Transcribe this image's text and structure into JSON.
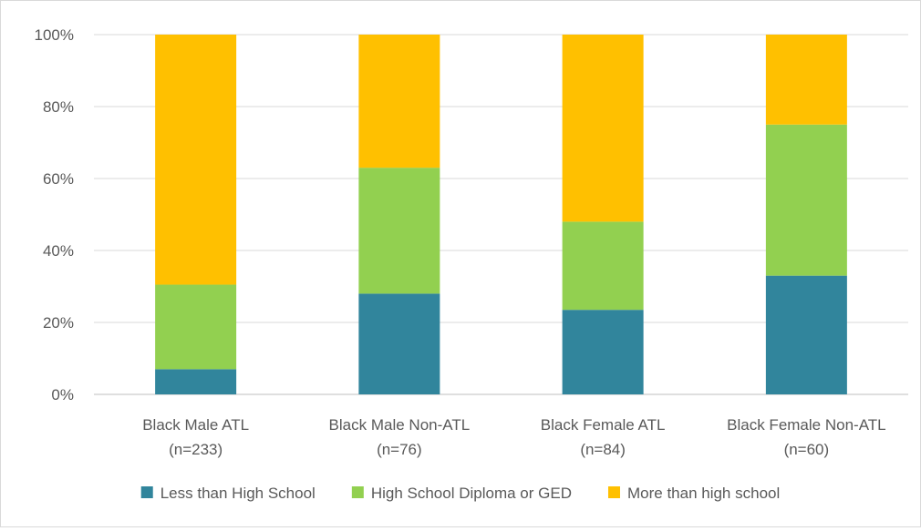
{
  "chart_data": {
    "type": "bar",
    "stacked": true,
    "percent_stacked": true,
    "categories": [
      [
        "Black Male ATL",
        "(n=233)"
      ],
      [
        "Black Male Non-ATL",
        "(n=76)"
      ],
      [
        "Black Female ATL",
        "(n=84)"
      ],
      [
        "Black Female Non-ATL",
        "(n=60)"
      ]
    ],
    "series": [
      {
        "name": "Less than High School",
        "color": "#31859c",
        "values": [
          7,
          28,
          23.5,
          33
        ]
      },
      {
        "name": "High School Diploma or GED",
        "color": "#92d050",
        "values": [
          23.5,
          35,
          24.5,
          42
        ]
      },
      {
        "name": "More than high school",
        "color": "#ffc000",
        "values": [
          69.5,
          37,
          52,
          25
        ]
      }
    ],
    "yticks": [
      "0%",
      "20%",
      "40%",
      "60%",
      "80%",
      "100%"
    ],
    "ylim": [
      0,
      100
    ],
    "grid": true,
    "legend_position": "bottom"
  }
}
